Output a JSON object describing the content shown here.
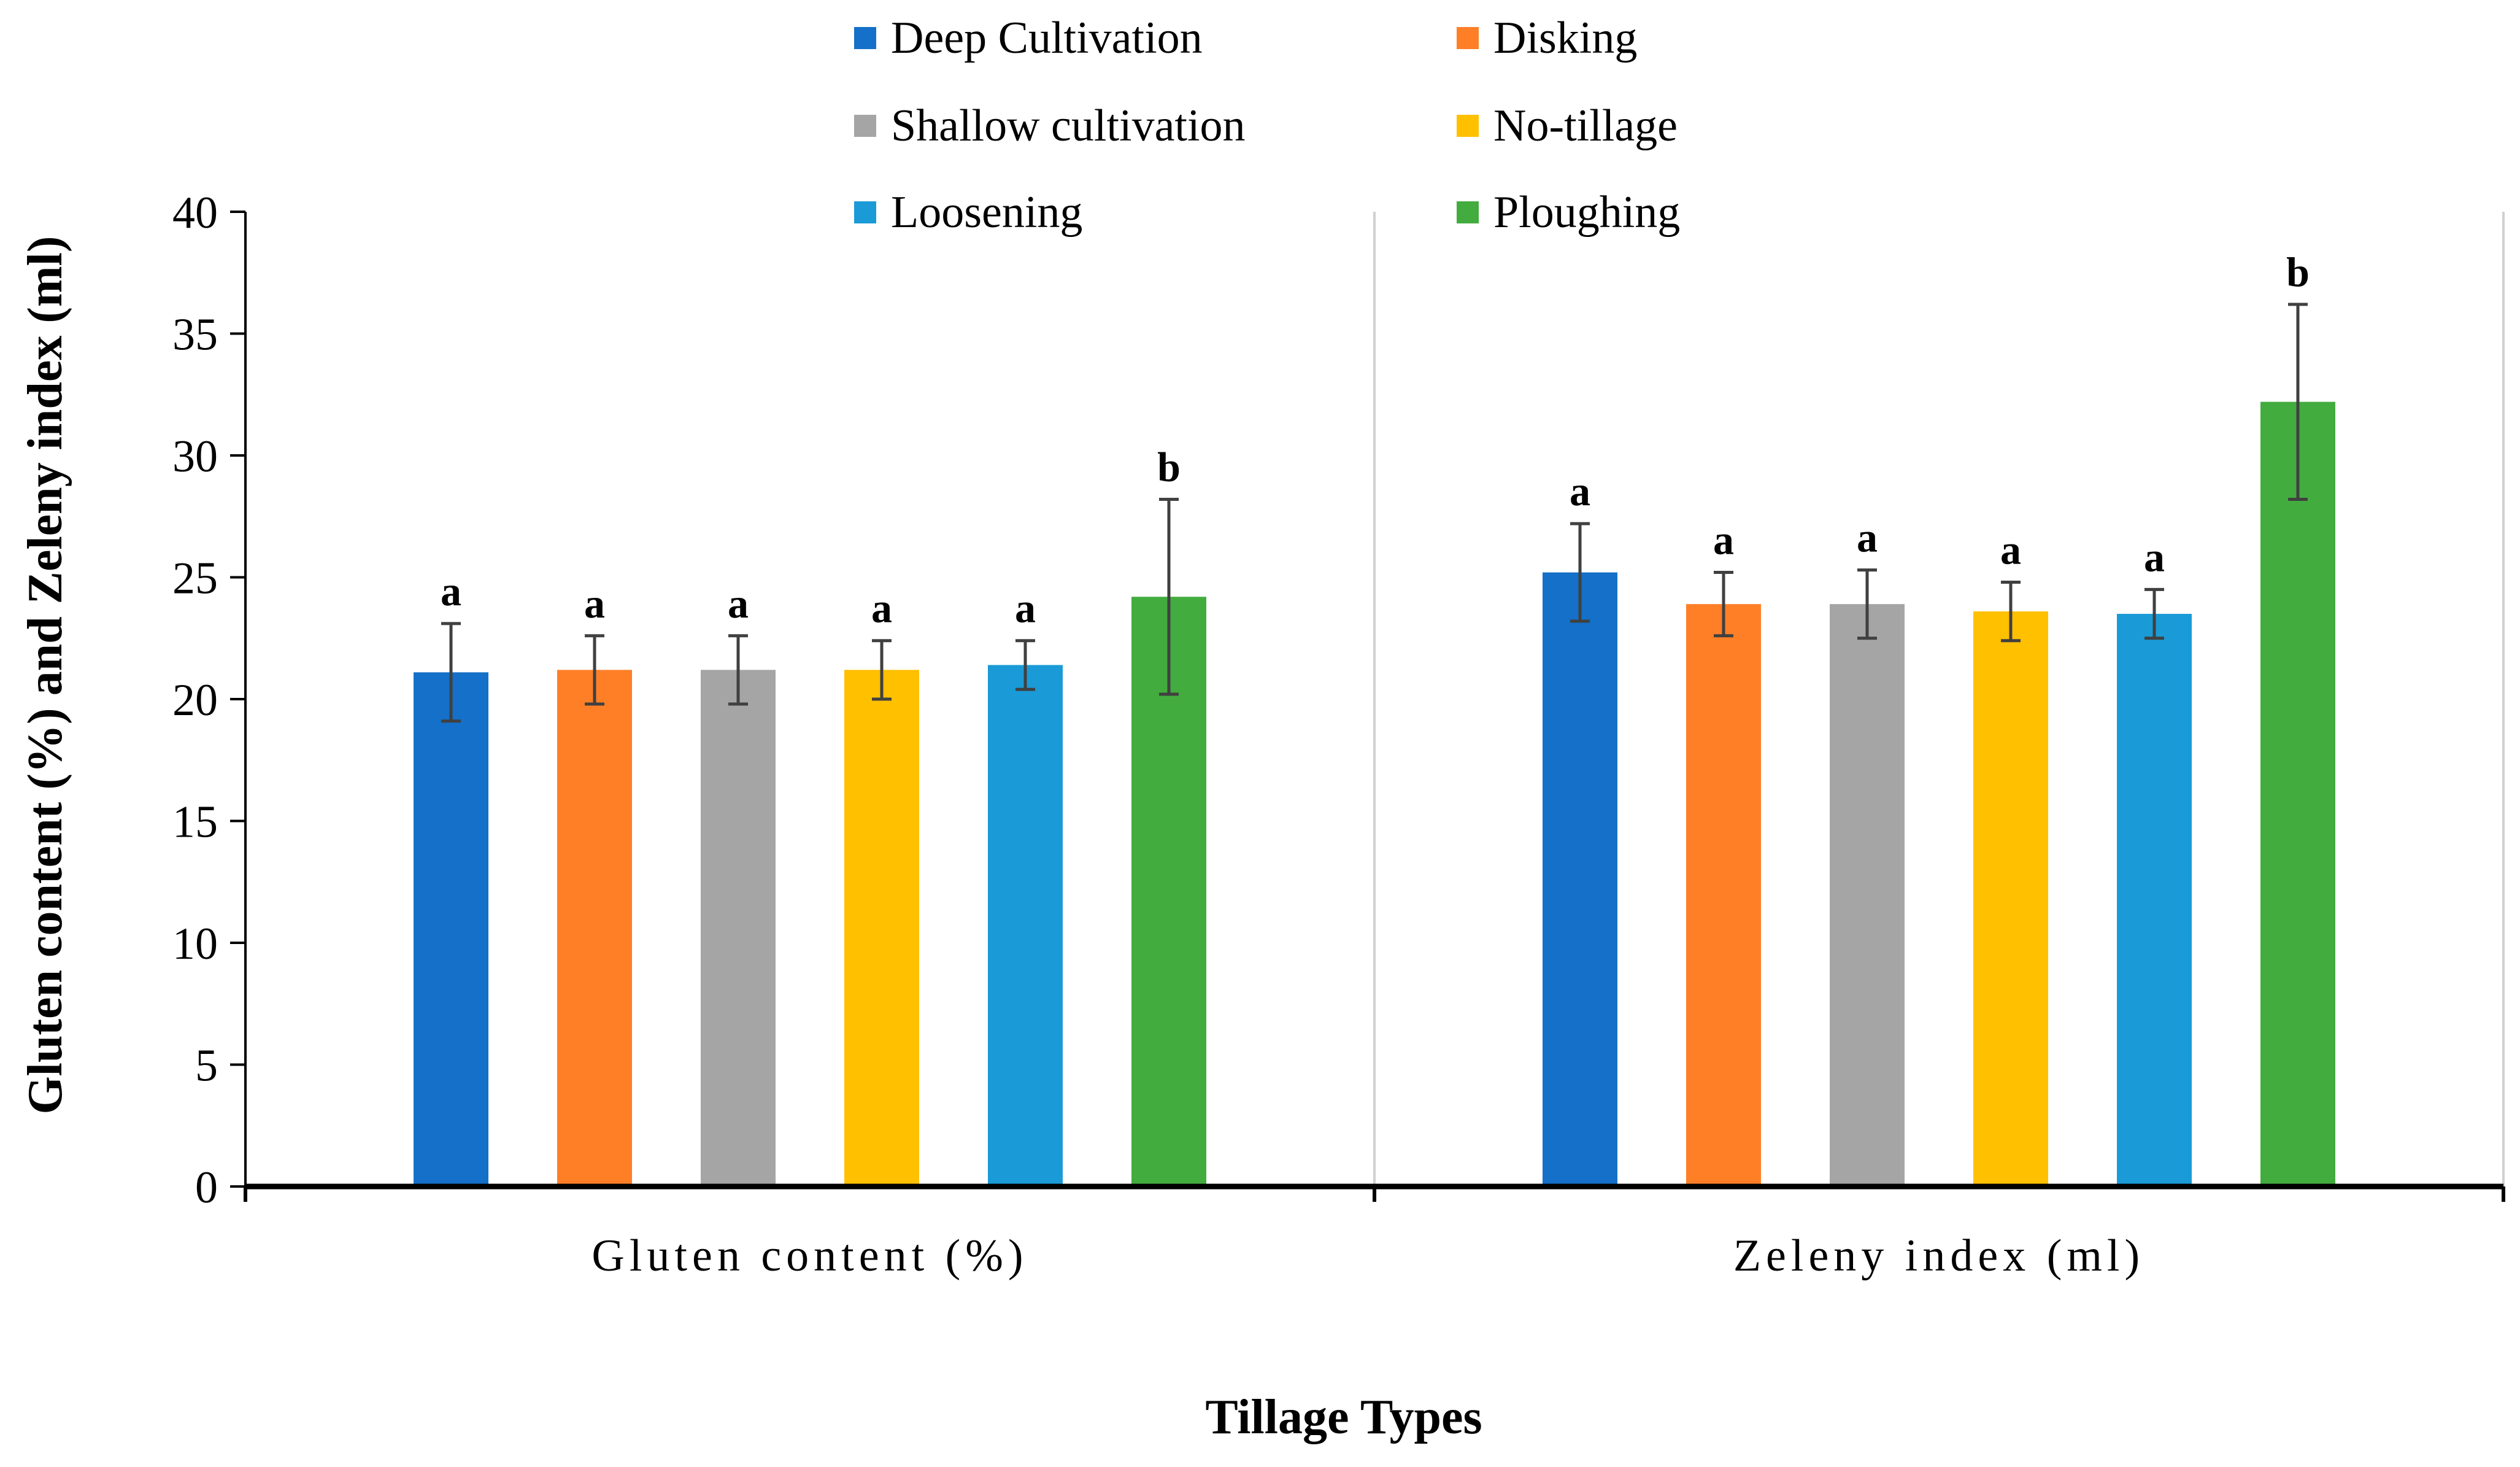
{
  "chart_data": {
    "type": "bar",
    "title": "",
    "xlabel": "Tillage Types",
    "ylabel": "Gluten content (%) and Zeleny index (ml)",
    "ylim": [
      0,
      40
    ],
    "yticks": [
      0,
      5,
      10,
      15,
      20,
      25,
      30,
      35,
      40
    ],
    "categories": [
      "Gluten content (%)",
      "Zeleny index (ml)"
    ],
    "legend_position": "top",
    "series": [
      {
        "name": "Deep Cultivation",
        "color": "#1470C8",
        "values": [
          21.1,
          25.2
        ],
        "errors": [
          2.0,
          2.0
        ],
        "significance": [
          "a",
          "a"
        ]
      },
      {
        "name": "Disking",
        "color": "#FF7F27",
        "values": [
          21.2,
          23.9
        ],
        "errors": [
          1.4,
          1.3
        ],
        "significance": [
          "a",
          "a"
        ]
      },
      {
        "name": "Shallow cultivation",
        "color": "#A5A5A5",
        "values": [
          21.2,
          23.9
        ],
        "errors": [
          1.4,
          1.4
        ],
        "significance": [
          "a",
          "a"
        ]
      },
      {
        "name": "No-tillage",
        "color": "#FFC000",
        "values": [
          21.2,
          23.6
        ],
        "errors": [
          1.2,
          1.2
        ],
        "significance": [
          "a",
          "a"
        ]
      },
      {
        "name": "Loosening",
        "color": "#1A9BD7",
        "values": [
          21.4,
          23.5
        ],
        "errors": [
          1.0,
          1.0
        ],
        "significance": [
          "a",
          "a"
        ]
      },
      {
        "name": "Ploughing",
        "color": "#43AC3E",
        "values": [
          24.2,
          32.2
        ],
        "errors": [
          4.0,
          4.0
        ],
        "significance": [
          "b",
          "b"
        ]
      }
    ]
  }
}
